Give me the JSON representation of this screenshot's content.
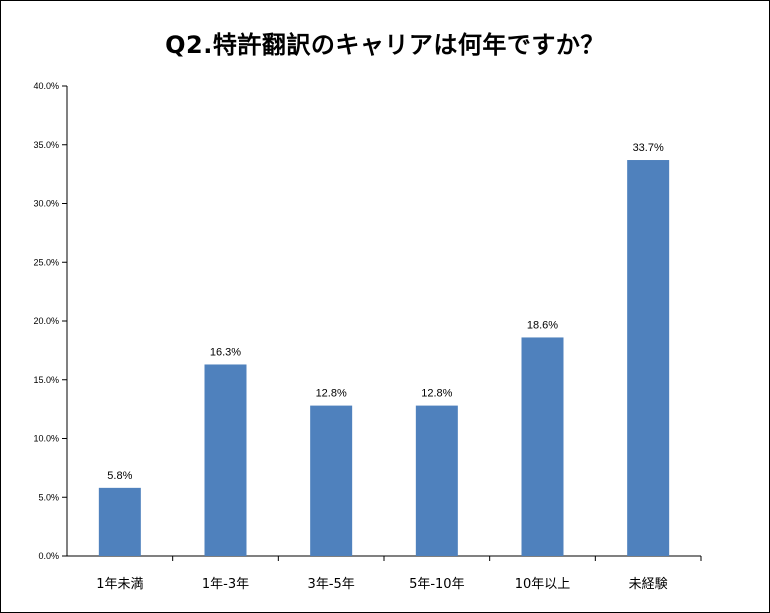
{
  "chart_data": {
    "type": "bar",
    "title": "Q2.特許翻訳のキャリアは何年ですか？",
    "categories": [
      "1年未満",
      "1年-3年",
      "3年-5年",
      "5年-10年",
      "10年以上",
      "未経験"
    ],
    "values": [
      5.8,
      16.3,
      12.8,
      12.8,
      18.6,
      33.7
    ],
    "data_labels": [
      "5.8%",
      "16.3%",
      "12.8%",
      "12.8%",
      "18.6%",
      "33.7%"
    ],
    "y_ticks": [
      0,
      5,
      10,
      15,
      20,
      25,
      30,
      35,
      40
    ],
    "y_tick_labels": [
      "0.0%",
      "5.0%",
      "10.0%",
      "15.0%",
      "20.0%",
      "25.0%",
      "30.0%",
      "35.0%",
      "40.0%"
    ],
    "ylim": [
      0,
      40
    ],
    "xlabel": "",
    "ylabel": "",
    "grid": false,
    "legend": "none",
    "bar_color": "#4f81bd"
  }
}
